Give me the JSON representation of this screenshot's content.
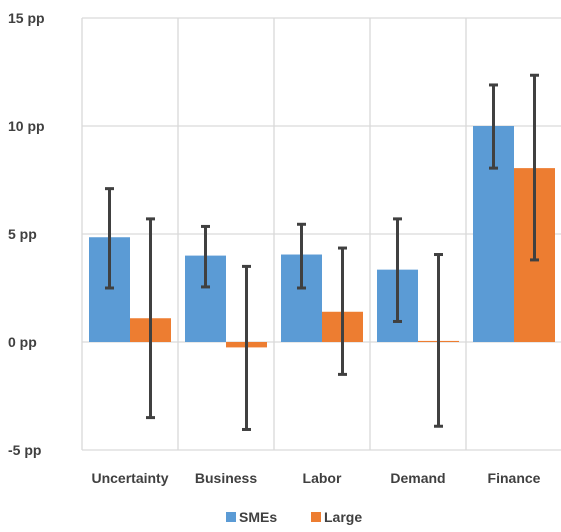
{
  "chart_data": {
    "type": "bar",
    "categories": [
      "Uncertainty",
      "Business",
      "Labor",
      "Demand",
      "Finance"
    ],
    "series": [
      {
        "name": "SMEs",
        "color": "#5b9bd5",
        "values": [
          4.85,
          4.0,
          4.05,
          3.35,
          10.0
        ],
        "err_low": [
          2.5,
          2.55,
          2.5,
          0.95,
          8.05
        ],
        "err_high": [
          7.1,
          5.35,
          5.45,
          5.7,
          11.9
        ]
      },
      {
        "name": "Large",
        "color": "#ed7d31",
        "values": [
          1.1,
          -0.25,
          1.4,
          0.05,
          8.05
        ],
        "err_low": [
          -3.5,
          -4.05,
          -1.5,
          -3.9,
          3.8
        ],
        "err_high": [
          5.7,
          3.5,
          4.35,
          4.05,
          12.35
        ]
      }
    ],
    "yticks": [
      "-5 pp",
      "0 pp",
      "5 pp",
      "10 pp",
      "15 pp"
    ],
    "ytick_values": [
      -5,
      0,
      5,
      10,
      15
    ],
    "ylim": [
      -5,
      15
    ],
    "title": "",
    "xlabel": "",
    "ylabel": "",
    "grid": "vertical category separators and horizontal gridlines",
    "legend_position": "bottom-center",
    "error_bar_color": "#404040",
    "gridline_color": "#d9d9d9"
  }
}
